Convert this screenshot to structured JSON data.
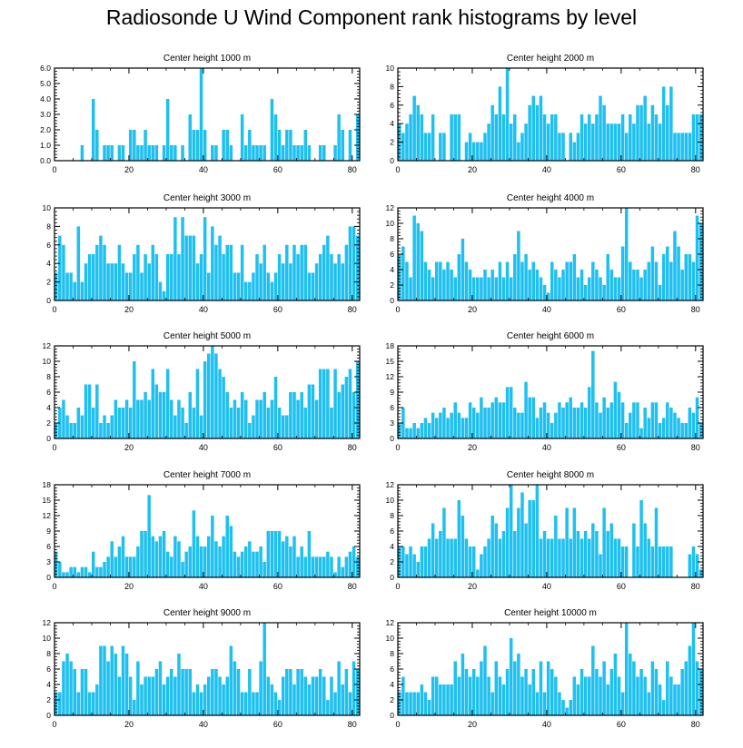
{
  "title": "Radiosonde U Wind Component rank histograms by level",
  "bar_color": "#1ec0f0",
  "chart_data": [
    {
      "type": "bar",
      "title": "Center height 1000 m",
      "xlim": [
        0,
        82
      ],
      "ylim": [
        0,
        6
      ],
      "xticks": [
        0,
        20,
        40,
        60,
        80
      ],
      "yticks": [
        0,
        1,
        2,
        3,
        4,
        5,
        6
      ],
      "ytick_labels": [
        "0.0",
        "1.0",
        "2.0",
        "3.0",
        "4.0",
        "5.0",
        "6.0"
      ],
      "values": [
        0,
        0,
        0,
        0,
        0,
        0,
        0,
        1,
        0,
        0,
        4,
        2,
        0,
        1,
        1,
        1,
        0,
        1,
        1,
        0,
        2,
        2,
        1,
        1,
        2,
        1,
        1,
        1,
        0,
        1,
        4,
        1,
        1,
        0,
        1,
        0,
        3,
        2,
        2,
        6,
        2,
        0,
        1,
        1,
        0,
        2,
        2,
        1,
        0,
        0,
        3,
        1,
        2,
        1,
        1,
        1,
        1,
        0,
        4,
        3,
        2,
        1,
        2,
        2,
        1,
        1,
        1,
        2,
        1,
        0,
        0,
        1,
        1,
        0,
        0,
        1,
        3,
        2,
        0,
        2,
        0,
        3
      ]
    },
    {
      "type": "bar",
      "title": "Center height 2000 m",
      "xlim": [
        0,
        82
      ],
      "ylim": [
        0,
        10
      ],
      "xticks": [
        0,
        20,
        40,
        60,
        80
      ],
      "yticks": [
        0,
        2,
        4,
        6,
        8,
        10
      ],
      "ytick_labels": [
        "0",
        "2",
        "4",
        "6",
        "8",
        "10"
      ],
      "values": [
        4,
        3,
        4,
        5,
        7,
        6,
        5,
        3,
        3,
        5,
        0,
        3,
        3,
        0,
        5,
        5,
        5,
        0,
        2,
        3,
        2,
        2,
        2,
        3,
        4,
        6,
        5,
        8,
        5,
        10,
        4,
        5,
        2,
        3,
        4,
        6,
        7,
        6,
        7,
        5,
        4,
        5,
        5,
        3,
        3,
        0,
        3,
        2,
        3,
        5,
        4,
        5,
        4,
        5,
        7,
        6,
        4,
        4,
        4,
        4,
        5,
        3,
        5,
        4,
        6,
        6,
        7,
        4,
        6,
        5,
        4,
        8,
        6,
        8,
        3,
        3,
        3,
        3,
        3,
        5,
        5,
        5
      ]
    },
    {
      "type": "bar",
      "title": "Center height 3000 m",
      "xlim": [
        0,
        82
      ],
      "ylim": [
        0,
        10
      ],
      "xticks": [
        0,
        20,
        40,
        60,
        80
      ],
      "yticks": [
        0,
        2,
        4,
        6,
        8,
        10
      ],
      "ytick_labels": [
        "0",
        "2",
        "4",
        "6",
        "8",
        "10"
      ],
      "values": [
        3,
        7,
        6,
        3,
        3,
        2,
        8,
        2,
        4,
        5,
        5,
        6,
        7,
        6,
        4,
        4,
        4,
        6,
        4,
        3,
        3,
        5,
        6,
        3,
        5,
        4,
        6,
        5,
        2,
        1,
        5,
        5,
        9,
        5,
        9,
        7,
        7,
        7,
        4,
        5,
        9,
        3,
        8,
        6,
        7,
        5,
        6,
        6,
        3,
        3,
        6,
        2,
        2,
        3,
        5,
        4,
        6,
        3,
        2,
        3,
        5,
        4,
        6,
        4,
        6,
        5,
        6,
        6,
        3,
        3,
        4,
        5,
        6,
        7,
        5,
        4,
        5,
        4,
        6,
        8,
        8,
        7
      ]
    },
    {
      "type": "bar",
      "title": "Center height 4000 m",
      "xlim": [
        0,
        82
      ],
      "ylim": [
        0,
        12
      ],
      "xticks": [
        0,
        20,
        40,
        60,
        80
      ],
      "yticks": [
        0,
        2,
        4,
        6,
        8,
        10,
        12
      ],
      "ytick_labels": [
        "0",
        "2",
        "4",
        "6",
        "8",
        "10",
        "12"
      ],
      "values": [
        6,
        7,
        5,
        3,
        11,
        10,
        9,
        5,
        4,
        3,
        5,
        5,
        4,
        5,
        4,
        3,
        6,
        8,
        5,
        4,
        3,
        3,
        3,
        4,
        3,
        4,
        3,
        5,
        3,
        5,
        3,
        6,
        9,
        5,
        6,
        4,
        5,
        4,
        3,
        2,
        1,
        5,
        4,
        3,
        4,
        5,
        5,
        6,
        3,
        4,
        2,
        3,
        5,
        4,
        3,
        2,
        6,
        4,
        3,
        3,
        7,
        12,
        5,
        4,
        4,
        3,
        4,
        5,
        7,
        5,
        2,
        6,
        7,
        5,
        9,
        7,
        4,
        6,
        6,
        5,
        11,
        10
      ]
    },
    {
      "type": "bar",
      "title": "Center height 5000 m",
      "xlim": [
        0,
        82
      ],
      "ylim": [
        0,
        12
      ],
      "xticks": [
        0,
        20,
        40,
        60,
        80
      ],
      "yticks": [
        0,
        2,
        4,
        6,
        8,
        10,
        12
      ],
      "ytick_labels": [
        "0",
        "2",
        "4",
        "6",
        "8",
        "10",
        "12"
      ],
      "values": [
        2,
        4,
        5,
        3,
        2,
        2,
        4,
        3,
        7,
        7,
        4,
        7,
        2,
        3,
        2,
        3,
        5,
        4,
        4,
        5,
        4,
        10,
        5,
        5,
        6,
        5,
        9,
        7,
        6,
        6,
        9,
        5,
        3,
        5,
        4,
        2,
        6,
        4,
        9,
        3,
        10,
        11,
        12,
        11,
        9,
        8,
        6,
        4,
        5,
        4,
        6,
        5,
        2,
        3,
        5,
        5,
        6,
        4,
        5,
        8,
        4,
        3,
        3,
        6,
        6,
        5,
        6,
        4,
        7,
        7,
        5,
        9,
        9,
        9,
        4,
        9,
        6,
        7,
        8,
        9,
        6,
        10
      ]
    },
    {
      "type": "bar",
      "title": "Center height 6000 m",
      "xlim": [
        0,
        82
      ],
      "ylim": [
        0,
        18
      ],
      "xticks": [
        0,
        20,
        40,
        60,
        80
      ],
      "yticks": [
        0,
        3,
        6,
        9,
        12,
        15,
        18
      ],
      "ytick_labels": [
        "0",
        "3",
        "6",
        "9",
        "12",
        "15",
        "18"
      ],
      "values": [
        3,
        6,
        2,
        2,
        3,
        2,
        3,
        4,
        3,
        5,
        4,
        5,
        6,
        4,
        5,
        7,
        5,
        4,
        4,
        7,
        6,
        5,
        8,
        6,
        6,
        7,
        8,
        7,
        7,
        10,
        10,
        6,
        5,
        5,
        11,
        8,
        8,
        4,
        6,
        7,
        5,
        3,
        5,
        7,
        6,
        7,
        8,
        6,
        6,
        7,
        6,
        10,
        17,
        7,
        5,
        8,
        6,
        7,
        11,
        9,
        7,
        3,
        5,
        7,
        7,
        2,
        6,
        4,
        7,
        7,
        3,
        4,
        7,
        6,
        5,
        4,
        3,
        3,
        6,
        5,
        8,
        3
      ]
    },
    {
      "type": "bar",
      "title": "Center height 7000 m",
      "xlim": [
        0,
        82
      ],
      "ylim": [
        0,
        18
      ],
      "xticks": [
        0,
        20,
        40,
        60,
        80
      ],
      "yticks": [
        0,
        3,
        6,
        9,
        12,
        15,
        18
      ],
      "ytick_labels": [
        "0",
        "3",
        "6",
        "9",
        "12",
        "15",
        "18"
      ],
      "values": [
        5,
        3,
        1,
        1,
        2,
        2,
        1,
        2,
        2,
        1,
        5,
        2,
        2,
        3,
        4,
        7,
        4,
        6,
        8,
        4,
        4,
        4,
        6,
        9,
        9,
        16,
        8,
        7,
        8,
        9,
        5,
        4,
        8,
        7,
        3,
        5,
        6,
        13,
        8,
        6,
        6,
        8,
        12,
        7,
        6,
        8,
        12,
        10,
        5,
        4,
        5,
        6,
        7,
        5,
        5,
        6,
        3,
        9,
        9,
        9,
        9,
        7,
        8,
        6,
        8,
        4,
        6,
        4,
        9,
        4,
        4,
        4,
        4,
        5,
        4,
        1,
        4,
        2,
        4,
        5,
        6,
        4
      ]
    },
    {
      "type": "bar",
      "title": "Center height 8000 m",
      "xlim": [
        0,
        82
      ],
      "ylim": [
        0,
        12
      ],
      "xticks": [
        0,
        20,
        40,
        60,
        80
      ],
      "yticks": [
        0,
        2,
        4,
        6,
        8,
        10,
        12
      ],
      "ytick_labels": [
        "0",
        "2",
        "4",
        "6",
        "8",
        "10",
        "12"
      ],
      "values": [
        4,
        4,
        3,
        4,
        3,
        2,
        4,
        4,
        5,
        7,
        5,
        6,
        9,
        5,
        5,
        5,
        10,
        8,
        5,
        4,
        4,
        1,
        3,
        4,
        5,
        8,
        7,
        5,
        6,
        9,
        12,
        6,
        9,
        11,
        7,
        10,
        10,
        12,
        5,
        6,
        5,
        5,
        8,
        5,
        5,
        9,
        5,
        9,
        6,
        5,
        6,
        5,
        7,
        6,
        3,
        9,
        6,
        7,
        5,
        5,
        4,
        4,
        0,
        7,
        4,
        10,
        7,
        5,
        4,
        9,
        4,
        4,
        4,
        4,
        0,
        0,
        0,
        0,
        3,
        4,
        3,
        1,
        2
      ]
    },
    {
      "type": "bar",
      "title": "Center height 9000 m",
      "xlim": [
        0,
        82
      ],
      "ylim": [
        0,
        12
      ],
      "xticks": [
        0,
        20,
        40,
        60,
        80
      ],
      "yticks": [
        0,
        2,
        4,
        6,
        8,
        10,
        12
      ],
      "ytick_labels": [
        "0",
        "2",
        "4",
        "6",
        "8",
        "10",
        "12"
      ],
      "values": [
        3,
        3,
        7,
        8,
        7,
        6,
        3,
        6,
        6,
        3,
        3,
        4,
        9,
        9,
        7,
        9,
        8,
        5,
        9,
        8,
        5,
        2,
        7,
        4,
        5,
        5,
        5,
        6,
        7,
        4,
        5,
        6,
        5,
        8,
        6,
        6,
        6,
        3,
        4,
        3,
        4,
        5,
        6,
        6,
        5,
        4,
        5,
        9,
        7,
        6,
        3,
        3,
        6,
        3,
        3,
        7,
        12,
        5,
        4,
        3,
        2,
        5,
        6,
        6,
        4,
        6,
        6,
        5,
        4,
        5,
        5,
        6,
        5,
        2,
        5,
        3,
        7,
        4,
        6,
        3,
        7,
        6
      ]
    },
    {
      "type": "bar",
      "title": "Center height 10000 m",
      "xlim": [
        0,
        82
      ],
      "ylim": [
        0,
        12
      ],
      "xticks": [
        0,
        20,
        40,
        60,
        80
      ],
      "yticks": [
        0,
        2,
        4,
        6,
        8,
        10,
        12
      ],
      "ytick_labels": [
        "0",
        "2",
        "4",
        "6",
        "8",
        "10",
        "12"
      ],
      "values": [
        3,
        5,
        3,
        3,
        3,
        3,
        4,
        3,
        2,
        5,
        5,
        4,
        4,
        4,
        4,
        7,
        5,
        8,
        6,
        5,
        6,
        5,
        7,
        9,
        5,
        3,
        7,
        5,
        4,
        6,
        10,
        7,
        8,
        5,
        6,
        4,
        6,
        3,
        7,
        3,
        7,
        6,
        5,
        3,
        2,
        1,
        2,
        5,
        4,
        6,
        5,
        5,
        9,
        6,
        5,
        7,
        4,
        6,
        8,
        5,
        3,
        12,
        8,
        7,
        5,
        6,
        5,
        3,
        7,
        6,
        4,
        2,
        7,
        5,
        4,
        4,
        6,
        7,
        9,
        12,
        7,
        6
      ]
    }
  ]
}
